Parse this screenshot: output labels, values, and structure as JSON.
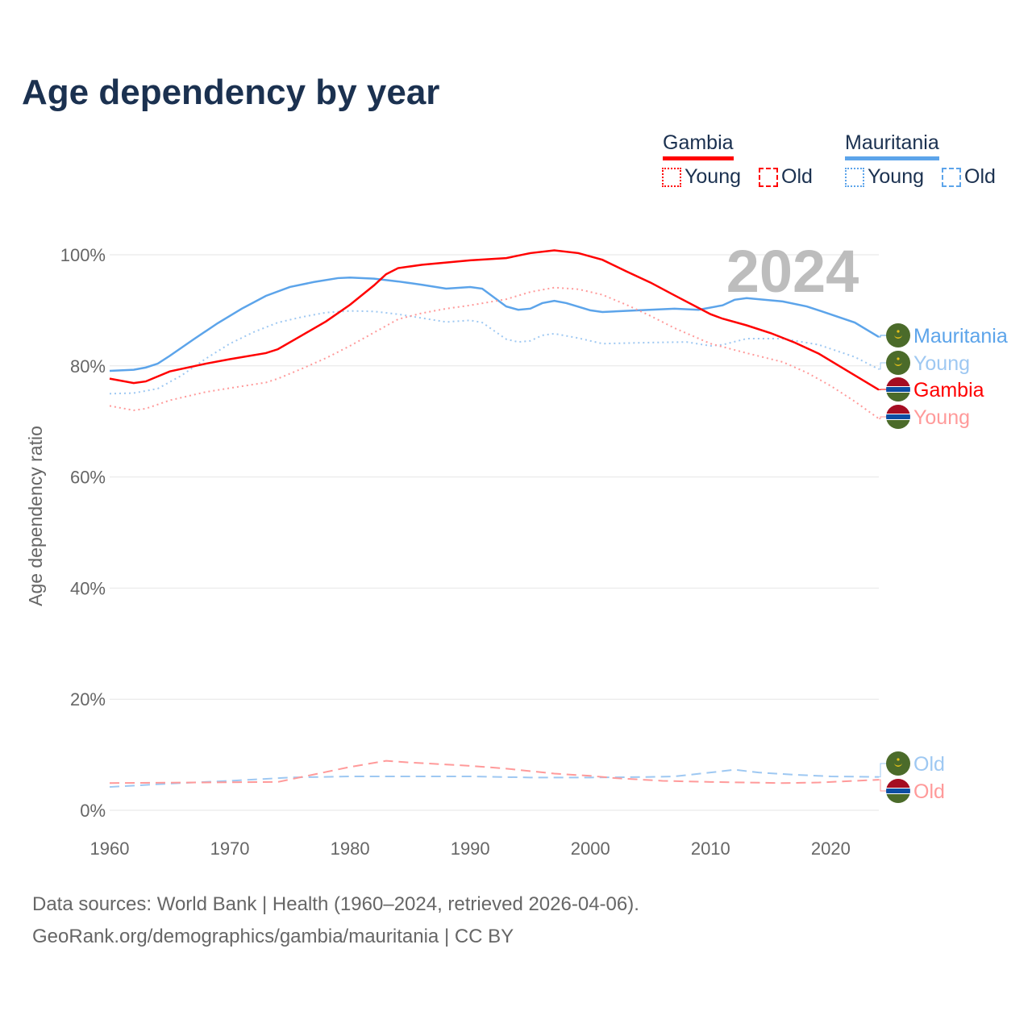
{
  "title": "Age dependency by year",
  "legend": {
    "countries": [
      {
        "name": "Gambia",
        "color": "#ff0000",
        "young": "Young",
        "old": "Old"
      },
      {
        "name": "Mauritania",
        "color": "#5ca4ea",
        "young": "Young",
        "old": "Old"
      }
    ]
  },
  "footer": {
    "line1": "Data sources: World Bank | Health (1960–2024, retrieved 2026-04-06).",
    "line2": "GeoRank.org/demographics/gambia/mauritania | CC BY"
  },
  "chart_data": {
    "type": "line",
    "title": "Age dependency by year",
    "ylabel": "Age dependency ratio",
    "xlabel": "",
    "year_label": "2024",
    "xlim": [
      1960,
      2024
    ],
    "ylim": [
      0,
      100
    ],
    "x_ticks": [
      "1960",
      "1970",
      "1980",
      "1990",
      "2000",
      "2010",
      "2020"
    ],
    "y_ticks": [
      "0%",
      "20%",
      "40%",
      "60%",
      "80%",
      "100%"
    ],
    "grid": true,
    "series": [
      {
        "name": "Mauritania",
        "label": "Mauritania",
        "style": "solid",
        "color": "#5ca4ea",
        "flag": "mauritania",
        "points": [
          [
            1960,
            79.1
          ],
          [
            1962,
            79.3
          ],
          [
            1963,
            79.7
          ],
          [
            1964,
            80.4
          ],
          [
            1965,
            81.8
          ],
          [
            1967,
            84.8
          ],
          [
            1969,
            87.7
          ],
          [
            1971,
            90.3
          ],
          [
            1973,
            92.6
          ],
          [
            1975,
            94.2
          ],
          [
            1977,
            95.1
          ],
          [
            1979,
            95.8
          ],
          [
            1980,
            95.9
          ],
          [
            1982,
            95.7
          ],
          [
            1984,
            95.2
          ],
          [
            1986,
            94.6
          ],
          [
            1988,
            93.9
          ],
          [
            1990,
            94.2
          ],
          [
            1991,
            93.9
          ],
          [
            1993,
            90.7
          ],
          [
            1994,
            90.1
          ],
          [
            1995,
            90.3
          ],
          [
            1996,
            91.3
          ],
          [
            1997,
            91.7
          ],
          [
            1998,
            91.3
          ],
          [
            2000,
            90.0
          ],
          [
            2001,
            89.7
          ],
          [
            2004,
            90.0
          ],
          [
            2007,
            90.3
          ],
          [
            2009,
            90.1
          ],
          [
            2011,
            90.9
          ],
          [
            2012,
            91.9
          ],
          [
            2013,
            92.2
          ],
          [
            2016,
            91.6
          ],
          [
            2018,
            90.7
          ],
          [
            2019,
            90.0
          ],
          [
            2022,
            87.8
          ],
          [
            2024,
            85.2
          ]
        ]
      },
      {
        "name": "Mauritania Young",
        "label": "Young",
        "style": "dotted",
        "color": "#9ec8f2",
        "flag": "mauritania",
        "points": [
          [
            1960,
            75.0
          ],
          [
            1962,
            75.1
          ],
          [
            1964,
            75.9
          ],
          [
            1966,
            78.3
          ],
          [
            1968,
            81.3
          ],
          [
            1970,
            84.0
          ],
          [
            1972,
            86.1
          ],
          [
            1974,
            87.8
          ],
          [
            1976,
            88.8
          ],
          [
            1978,
            89.6
          ],
          [
            1980,
            89.9
          ],
          [
            1982,
            89.8
          ],
          [
            1984,
            89.3
          ],
          [
            1986,
            88.6
          ],
          [
            1988,
            87.9
          ],
          [
            1990,
            88.2
          ],
          [
            1991,
            87.8
          ],
          [
            1993,
            84.8
          ],
          [
            1994,
            84.3
          ],
          [
            1995,
            84.5
          ],
          [
            1996,
            85.5
          ],
          [
            1997,
            85.8
          ],
          [
            1999,
            85.0
          ],
          [
            2001,
            84.0
          ],
          [
            2005,
            84.2
          ],
          [
            2008,
            84.3
          ],
          [
            2010,
            83.6
          ],
          [
            2011,
            83.8
          ],
          [
            2013,
            84.9
          ],
          [
            2016,
            84.9
          ],
          [
            2019,
            83.8
          ],
          [
            2022,
            81.6
          ],
          [
            2024,
            79.4
          ]
        ]
      },
      {
        "name": "Gambia",
        "label": "Gambia",
        "style": "solid",
        "color": "#ff0000",
        "flag": "gambia",
        "points": [
          [
            1960,
            77.7
          ],
          [
            1962,
            76.9
          ],
          [
            1963,
            77.2
          ],
          [
            1965,
            79.0
          ],
          [
            1968,
            80.4
          ],
          [
            1970,
            81.2
          ],
          [
            1973,
            82.3
          ],
          [
            1974,
            83.0
          ],
          [
            1976,
            85.5
          ],
          [
            1978,
            88.0
          ],
          [
            1980,
            91.0
          ],
          [
            1982,
            94.5
          ],
          [
            1983,
            96.5
          ],
          [
            1984,
            97.6
          ],
          [
            1986,
            98.2
          ],
          [
            1988,
            98.6
          ],
          [
            1990,
            99.0
          ],
          [
            1993,
            99.4
          ],
          [
            1995,
            100.3
          ],
          [
            1997,
            100.8
          ],
          [
            1999,
            100.3
          ],
          [
            2001,
            99.1
          ],
          [
            2003,
            97.0
          ],
          [
            2005,
            95.0
          ],
          [
            2007,
            92.7
          ],
          [
            2010,
            89.3
          ],
          [
            2011,
            88.5
          ],
          [
            2013,
            87.3
          ],
          [
            2015,
            85.9
          ],
          [
            2017,
            84.2
          ],
          [
            2019,
            82.2
          ],
          [
            2021,
            79.6
          ],
          [
            2024,
            75.7
          ]
        ]
      },
      {
        "name": "Gambia Young",
        "label": "Young",
        "style": "dotted",
        "color": "#ff9a9a",
        "flag": "gambia",
        "points": [
          [
            1960,
            72.8
          ],
          [
            1962,
            72.0
          ],
          [
            1963,
            72.3
          ],
          [
            1965,
            73.8
          ],
          [
            1968,
            75.3
          ],
          [
            1970,
            76.0
          ],
          [
            1973,
            77.0
          ],
          [
            1974,
            77.7
          ],
          [
            1976,
            79.5
          ],
          [
            1978,
            81.4
          ],
          [
            1980,
            83.6
          ],
          [
            1982,
            86.0
          ],
          [
            1984,
            88.4
          ],
          [
            1986,
            89.5
          ],
          [
            1988,
            90.3
          ],
          [
            1990,
            90.9
          ],
          [
            1993,
            92.0
          ],
          [
            1995,
            93.3
          ],
          [
            1997,
            94.1
          ],
          [
            1999,
            93.8
          ],
          [
            2001,
            92.8
          ],
          [
            2003,
            91.0
          ],
          [
            2005,
            89.0
          ],
          [
            2007,
            86.8
          ],
          [
            2010,
            84.0
          ],
          [
            2013,
            82.3
          ],
          [
            2016,
            80.7
          ],
          [
            2018,
            78.8
          ],
          [
            2020,
            76.4
          ],
          [
            2022,
            73.6
          ],
          [
            2024,
            70.5
          ]
        ]
      },
      {
        "name": "Mauritania Old",
        "label": "Old",
        "style": "dashed",
        "color": "#9ec8f2",
        "flag": "mauritania",
        "points": [
          [
            1960,
            4.2
          ],
          [
            1965,
            4.8
          ],
          [
            1970,
            5.3
          ],
          [
            1975,
            5.9
          ],
          [
            1980,
            6.1
          ],
          [
            1990,
            6.1
          ],
          [
            1995,
            5.9
          ],
          [
            2000,
            5.9
          ],
          [
            2005,
            6.0
          ],
          [
            2007,
            6.1
          ],
          [
            2010,
            6.8
          ],
          [
            2012,
            7.3
          ],
          [
            2014,
            6.8
          ],
          [
            2017,
            6.4
          ],
          [
            2020,
            6.1
          ],
          [
            2024,
            6.0
          ]
        ]
      },
      {
        "name": "Gambia Old",
        "label": "Old",
        "style": "dashed",
        "color": "#ff9a9a",
        "flag": "gambia",
        "points": [
          [
            1960,
            4.9
          ],
          [
            1974,
            5.1
          ],
          [
            1976,
            6.0
          ],
          [
            1980,
            7.8
          ],
          [
            1983,
            8.9
          ],
          [
            1985,
            8.6
          ],
          [
            1990,
            8.0
          ],
          [
            1993,
            7.5
          ],
          [
            1997,
            6.6
          ],
          [
            2000,
            6.2
          ],
          [
            2002,
            5.8
          ],
          [
            2006,
            5.3
          ],
          [
            2010,
            5.1
          ],
          [
            2013,
            5.0
          ],
          [
            2016,
            4.9
          ],
          [
            2019,
            5.0
          ],
          [
            2024,
            5.5
          ]
        ]
      }
    ]
  }
}
